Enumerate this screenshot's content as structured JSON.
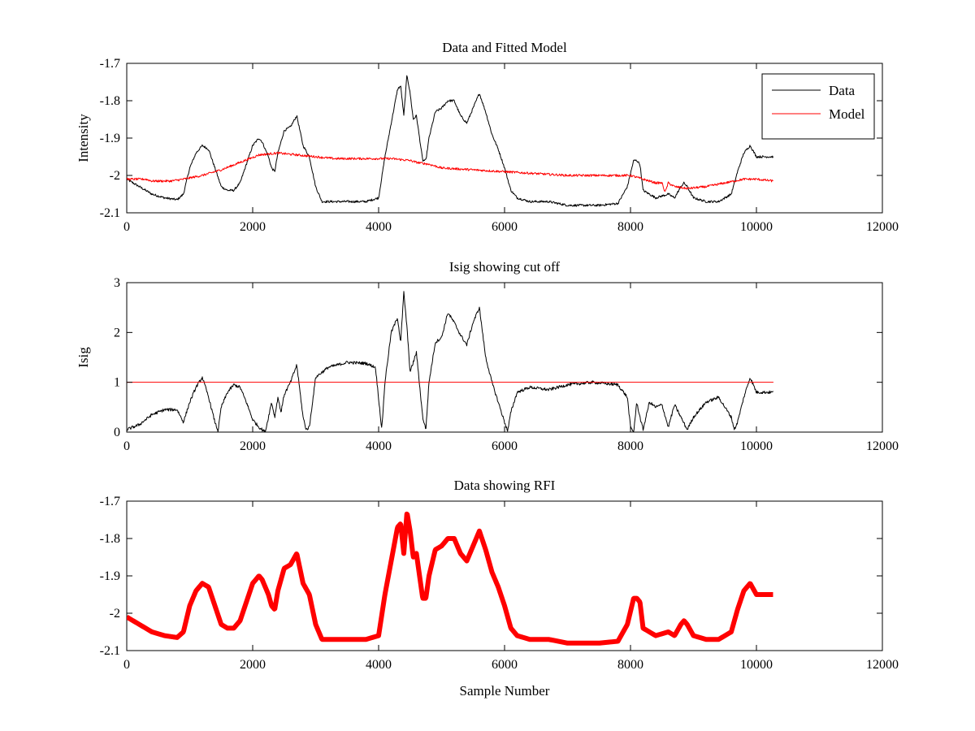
{
  "chart_data": [
    {
      "type": "line",
      "title": "Data and Fitted Model",
      "xlabel": "",
      "ylabel": "Intensity",
      "xlim": [
        0,
        12000
      ],
      "ylim": [
        -2.1,
        -1.7
      ],
      "yticks": [
        -1.7,
        -1.8,
        -1.9,
        -2.0,
        -2.1
      ],
      "ytick_labels": [
        "-1.7",
        "-1.8",
        "-1.9",
        "-2",
        "-2.1"
      ],
      "xticks": [
        0,
        2000,
        4000,
        6000,
        8000,
        10000,
        12000
      ],
      "xtick_labels": [
        "0",
        "2000",
        "4000",
        "6000",
        "8000",
        "10000",
        "12000"
      ],
      "legend": "top-right",
      "grid": false,
      "series": [
        {
          "name": "Data",
          "color": "#000000",
          "x": [
            0,
            200,
            400,
            600,
            800,
            900,
            1000,
            1100,
            1200,
            1300,
            1400,
            1500,
            1600,
            1700,
            1800,
            1900,
            2000,
            2100,
            2150,
            2200,
            2250,
            2300,
            2350,
            2400,
            2500,
            2600,
            2700,
            2800,
            2900,
            3000,
            3100,
            3200,
            3500,
            3800,
            4000,
            4100,
            4200,
            4300,
            4350,
            4400,
            4450,
            4500,
            4550,
            4600,
            4700,
            4750,
            4800,
            4900,
            5000,
            5100,
            5200,
            5300,
            5400,
            5500,
            5600,
            5700,
            5800,
            5900,
            6000,
            6100,
            6200,
            6400,
            6700,
            7000,
            7500,
            7800,
            7950,
            8050,
            8100,
            8150,
            8200,
            8300,
            8400,
            8600,
            8700,
            8800,
            8850,
            8900,
            9000,
            9200,
            9400,
            9600,
            9700,
            9800,
            9900,
            10000,
            10100,
            10270
          ],
          "y": [
            -2.01,
            -2.03,
            -2.05,
            -2.06,
            -2.065,
            -2.05,
            -1.98,
            -1.94,
            -1.92,
            -1.93,
            -1.98,
            -2.03,
            -2.04,
            -2.04,
            -2.02,
            -1.97,
            -1.92,
            -1.9,
            -1.91,
            -1.93,
            -1.95,
            -1.98,
            -1.99,
            -1.94,
            -1.88,
            -1.87,
            -1.84,
            -1.92,
            -1.95,
            -2.03,
            -2.07,
            -2.07,
            -2.07,
            -2.07,
            -2.06,
            -1.95,
            -1.86,
            -1.77,
            -1.76,
            -1.84,
            -1.73,
            -1.78,
            -1.85,
            -1.84,
            -1.96,
            -1.96,
            -1.9,
            -1.83,
            -1.82,
            -1.8,
            -1.8,
            -1.84,
            -1.86,
            -1.82,
            -1.78,
            -1.83,
            -1.89,
            -1.93,
            -1.98,
            -2.04,
            -2.06,
            -2.07,
            -2.07,
            -2.08,
            -2.08,
            -2.075,
            -2.03,
            -1.96,
            -1.96,
            -1.97,
            -2.04,
            -2.05,
            -2.06,
            -2.05,
            -2.06,
            -2.03,
            -2.02,
            -2.03,
            -2.06,
            -2.07,
            -2.07,
            -2.05,
            -1.99,
            -1.94,
            -1.92,
            -1.95,
            -1.95,
            -1.95
          ]
        },
        {
          "name": "Model",
          "color": "#ff0000",
          "x": [
            0,
            300,
            400,
            700,
            900,
            1200,
            1500,
            1800,
            2100,
            2400,
            2700,
            3000,
            3300,
            3600,
            3900,
            4200,
            4500,
            4600,
            4800,
            5000,
            5500,
            6000,
            6500,
            7000,
            7500,
            8000,
            8200,
            8400,
            8500,
            8550,
            8600,
            8700,
            8900,
            9200,
            9500,
            9800,
            10000,
            10270
          ],
          "y": [
            -2.01,
            -2.01,
            -2.015,
            -2.015,
            -2.01,
            -2.0,
            -1.985,
            -1.965,
            -1.945,
            -1.94,
            -1.945,
            -1.95,
            -1.955,
            -1.955,
            -1.955,
            -1.955,
            -1.96,
            -1.965,
            -1.97,
            -1.98,
            -1.985,
            -1.99,
            -1.995,
            -2.0,
            -2.0,
            -2.0,
            -2.01,
            -2.02,
            -2.02,
            -2.045,
            -2.02,
            -2.03,
            -2.035,
            -2.03,
            -2.02,
            -2.01,
            -2.01,
            -2.015
          ]
        }
      ]
    },
    {
      "type": "line",
      "title": "Isig showing cut off",
      "xlabel": "",
      "ylabel": "Isig",
      "xlim": [
        0,
        12000
      ],
      "ylim": [
        0,
        3
      ],
      "yticks": [
        0,
        1,
        2,
        3
      ],
      "ytick_labels": [
        "0",
        "1",
        "2",
        "3"
      ],
      "xticks": [
        0,
        2000,
        4000,
        6000,
        8000,
        10000,
        12000
      ],
      "xtick_labels": [
        "0",
        "2000",
        "4000",
        "6000",
        "8000",
        "10000",
        "12000"
      ],
      "grid": false,
      "series": [
        {
          "color": "#000000",
          "x": [
            0,
            200,
            400,
            600,
            800,
            900,
            1000,
            1100,
            1200,
            1300,
            1400,
            1450,
            1500,
            1600,
            1700,
            1800,
            1900,
            2000,
            2100,
            2200,
            2300,
            2350,
            2400,
            2450,
            2500,
            2600,
            2700,
            2800,
            2850,
            2900,
            3000,
            3200,
            3500,
            3800,
            3950,
            4050,
            4100,
            4200,
            4300,
            4350,
            4400,
            4450,
            4500,
            4600,
            4700,
            4750,
            4800,
            4900,
            5000,
            5100,
            5200,
            5300,
            5400,
            5500,
            5600,
            5700,
            5800,
            5900,
            6000,
            6050,
            6100,
            6200,
            6400,
            6700,
            7000,
            7400,
            7800,
            7950,
            8000,
            8050,
            8100,
            8150,
            8200,
            8300,
            8400,
            8500,
            8600,
            8700,
            8800,
            8900,
            9000,
            9200,
            9400,
            9600,
            9650,
            9700,
            9800,
            9900,
            10000,
            10100,
            10270
          ],
          "y": [
            0.05,
            0.15,
            0.35,
            0.45,
            0.45,
            0.2,
            0.6,
            0.9,
            1.1,
            0.7,
            0.2,
            0.02,
            0.5,
            0.8,
            0.95,
            0.9,
            0.6,
            0.25,
            0.1,
            0.0,
            0.6,
            0.3,
            0.7,
            0.4,
            0.75,
            1.0,
            1.35,
            0.3,
            0.05,
            0.1,
            1.1,
            1.3,
            1.4,
            1.38,
            1.3,
            0.05,
            1.0,
            2.0,
            2.3,
            1.8,
            2.8,
            2.1,
            1.2,
            1.6,
            0.3,
            0.05,
            1.0,
            1.8,
            1.9,
            2.4,
            2.2,
            1.95,
            1.75,
            2.2,
            2.5,
            1.5,
            1.0,
            0.6,
            0.2,
            0.02,
            0.4,
            0.8,
            0.9,
            0.85,
            0.95,
            1.0,
            0.95,
            0.7,
            0.1,
            0.0,
            0.6,
            0.3,
            0.05,
            0.6,
            0.5,
            0.55,
            0.1,
            0.55,
            0.3,
            0.05,
            0.3,
            0.6,
            0.7,
            0.3,
            0.05,
            0.2,
            0.7,
            1.1,
            0.8,
            0.8,
            0.8
          ]
        },
        {
          "color": "#ff0000",
          "x": [
            0,
            10270
          ],
          "y": [
            1.0,
            1.0
          ]
        }
      ]
    },
    {
      "type": "line",
      "title": "Data showing RFI",
      "xlabel": "Sample Number",
      "ylabel": "",
      "xlim": [
        0,
        12000
      ],
      "ylim": [
        -2.1,
        -1.7
      ],
      "yticks": [
        -1.7,
        -1.8,
        -1.9,
        -2.0,
        -2.1
      ],
      "ytick_labels": [
        "-1.7",
        "-1.8",
        "-1.9",
        "-2",
        "-2.1"
      ],
      "xticks": [
        0,
        2000,
        4000,
        6000,
        8000,
        10000,
        12000
      ],
      "xtick_labels": [
        "0",
        "2000",
        "4000",
        "6000",
        "8000",
        "10000",
        "12000"
      ],
      "grid": false,
      "series": [
        {
          "color": "#ff0000",
          "x": [
            0,
            200,
            400,
            600,
            800,
            900,
            1000,
            1100,
            1200,
            1300,
            1400,
            1500,
            1600,
            1700,
            1800,
            1900,
            2000,
            2100,
            2150,
            2200,
            2250,
            2300,
            2350,
            2400,
            2500,
            2600,
            2700,
            2800,
            2900,
            3000,
            3100,
            3200,
            3500,
            3800,
            4000,
            4100,
            4200,
            4300,
            4350,
            4400,
            4450,
            4500,
            4550,
            4600,
            4700,
            4750,
            4800,
            4900,
            5000,
            5100,
            5200,
            5300,
            5400,
            5500,
            5600,
            5700,
            5800,
            5900,
            6000,
            6100,
            6200,
            6400,
            6700,
            7000,
            7500,
            7800,
            7950,
            8050,
            8100,
            8150,
            8200,
            8300,
            8400,
            8600,
            8700,
            8800,
            8850,
            8900,
            9000,
            9200,
            9400,
            9600,
            9700,
            9800,
            9900,
            10000,
            10100,
            10270
          ],
          "y": [
            -2.01,
            -2.03,
            -2.05,
            -2.06,
            -2.065,
            -2.05,
            -1.98,
            -1.94,
            -1.92,
            -1.93,
            -1.98,
            -2.03,
            -2.04,
            -2.04,
            -2.02,
            -1.97,
            -1.92,
            -1.9,
            -1.91,
            -1.93,
            -1.95,
            -1.98,
            -1.99,
            -1.94,
            -1.88,
            -1.87,
            -1.84,
            -1.92,
            -1.95,
            -2.03,
            -2.07,
            -2.07,
            -2.07,
            -2.07,
            -2.06,
            -1.95,
            -1.86,
            -1.77,
            -1.76,
            -1.84,
            -1.73,
            -1.78,
            -1.85,
            -1.84,
            -1.96,
            -1.96,
            -1.9,
            -1.83,
            -1.82,
            -1.8,
            -1.8,
            -1.84,
            -1.86,
            -1.82,
            -1.78,
            -1.83,
            -1.89,
            -1.93,
            -1.98,
            -2.04,
            -2.06,
            -2.07,
            -2.07,
            -2.08,
            -2.08,
            -2.075,
            -2.03,
            -1.96,
            -1.96,
            -1.97,
            -2.04,
            -2.05,
            -2.06,
            -2.05,
            -2.06,
            -2.03,
            -2.02,
            -2.03,
            -2.06,
            -2.07,
            -2.07,
            -2.05,
            -1.99,
            -1.94,
            -1.92,
            -1.95,
            -1.95,
            -1.95
          ]
        }
      ]
    }
  ]
}
